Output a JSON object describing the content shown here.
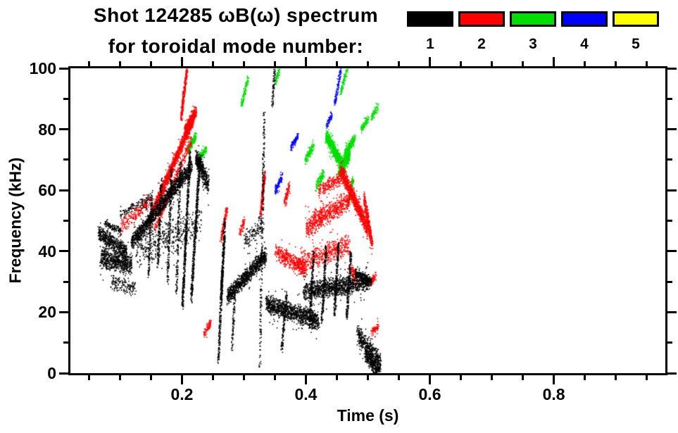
{
  "chart_data": {
    "type": "scatter",
    "title": "Shot 124285 ωB(ω) spectrum",
    "subtitle": "for toroidal mode number:",
    "xlabel": "Time (s)",
    "ylabel": "Frequency (kHz)",
    "xlim": [
      0.02,
      0.98
    ],
    "ylim": [
      0,
      100
    ],
    "xtick_values": [
      0.2,
      0.4,
      0.6,
      0.8
    ],
    "xtick_labels": [
      "0.2",
      "0.4",
      "0.6",
      "0.8"
    ],
    "x_minor_step": 0.05,
    "ytick_values": [
      0,
      20,
      40,
      60,
      80,
      100
    ],
    "ytick_labels": [
      "0",
      "20",
      "40",
      "60",
      "80",
      "100"
    ],
    "y_minor_step": 10,
    "grid": false,
    "seed": 1234,
    "point_size": 1.6,
    "legend": {
      "position": "top-right",
      "entries": [
        {
          "label": "1",
          "color": "#000000"
        },
        {
          "label": "2",
          "color": "#ff0000"
        },
        {
          "label": "3",
          "color": "#00dd00"
        },
        {
          "label": "4",
          "color": "#0000ff"
        },
        {
          "label": "5",
          "color": "#ffff00"
        }
      ]
    },
    "series_note": "segments format: [t_start, t_end, f_start_kHz, f_end_kHz, f_spread_kHz, n_points]",
    "series": [
      {
        "name": "1",
        "color": "#000000",
        "segments": [
          [
            0.065,
            0.11,
            46,
            40,
            3,
            500
          ],
          [
            0.068,
            0.118,
            38,
            36,
            4,
            650
          ],
          [
            0.075,
            0.1,
            49,
            47,
            1.5,
            120
          ],
          [
            0.085,
            0.125,
            30,
            28,
            3,
            140
          ],
          [
            0.1,
            0.148,
            52,
            58,
            2,
            120
          ],
          [
            0.118,
            0.215,
            43,
            68,
            3,
            1400
          ],
          [
            0.125,
            0.23,
            40,
            50,
            7,
            450
          ],
          [
            0.145,
            0.151,
            32,
            60,
            1,
            160
          ],
          [
            0.16,
            0.166,
            35,
            64,
            1,
            160
          ],
          [
            0.176,
            0.182,
            30,
            67,
            1,
            190
          ],
          [
            0.19,
            0.197,
            26,
            70,
            1,
            200
          ],
          [
            0.2,
            0.212,
            22,
            72,
            1.5,
            520
          ],
          [
            0.214,
            0.228,
            24,
            71,
            2,
            480
          ],
          [
            0.222,
            0.242,
            71,
            62,
            3.5,
            380
          ],
          [
            0.258,
            0.268,
            4,
            50,
            1.5,
            300
          ],
          [
            0.262,
            0.268,
            24,
            46,
            2,
            200
          ],
          [
            0.272,
            0.335,
            25,
            39,
            3,
            950
          ],
          [
            0.28,
            0.285,
            8,
            28,
            1,
            90
          ],
          [
            0.3,
            0.33,
            43,
            49,
            4,
            130
          ],
          [
            0.325,
            0.332,
            2,
            86,
            1.2,
            240
          ],
          [
            0.335,
            0.42,
            23,
            17,
            3.5,
            1100
          ],
          [
            0.345,
            0.349,
            88,
            100,
            0.8,
            70
          ],
          [
            0.36,
            0.368,
            8,
            26,
            1,
            120
          ],
          [
            0.395,
            0.5,
            27,
            30,
            3.5,
            1100
          ],
          [
            0.405,
            0.412,
            15,
            40,
            1,
            190
          ],
          [
            0.425,
            0.432,
            17,
            42,
            1,
            200
          ],
          [
            0.445,
            0.452,
            19,
            43,
            1,
            210
          ],
          [
            0.465,
            0.472,
            18,
            40,
            1,
            190
          ],
          [
            0.478,
            0.505,
            33,
            30,
            2,
            230
          ],
          [
            0.482,
            0.52,
            13,
            3,
            4,
            430
          ],
          [
            0.495,
            0.518,
            6,
            1,
            3,
            330
          ]
        ]
      },
      {
        "name": "2",
        "color": "#ff0000",
        "segments": [
          [
            0.1,
            0.15,
            48,
            57,
            2.5,
            200
          ],
          [
            0.15,
            0.218,
            52,
            84,
            2.5,
            1500
          ],
          [
            0.155,
            0.215,
            47,
            77,
            2,
            320
          ],
          [
            0.198,
            0.207,
            84,
            100,
            1.5,
            280
          ],
          [
            0.204,
            0.222,
            80,
            86,
            2,
            330
          ],
          [
            0.235,
            0.246,
            13,
            17,
            1.5,
            80
          ],
          [
            0.262,
            0.272,
            44,
            54,
            1.5,
            140
          ],
          [
            0.292,
            0.3,
            46,
            50,
            1.5,
            60
          ],
          [
            0.326,
            0.333,
            52,
            66,
            1.2,
            220
          ],
          [
            0.35,
            0.4,
            40,
            34,
            3,
            420
          ],
          [
            0.365,
            0.372,
            56,
            62,
            2,
            90
          ],
          [
            0.38,
            0.47,
            36,
            42,
            4,
            550
          ],
          [
            0.4,
            0.47,
            48,
            57,
            4,
            700
          ],
          [
            0.42,
            0.46,
            60,
            65,
            2.5,
            240
          ],
          [
            0.455,
            0.5,
            67,
            47,
            3,
            1000
          ],
          [
            0.493,
            0.506,
            58,
            42,
            2.5,
            330
          ],
          [
            0.498,
            0.512,
            29,
            32,
            1.5,
            90
          ],
          [
            0.504,
            0.516,
            13,
            16,
            1.5,
            70
          ],
          [
            0.472,
            0.48,
            35,
            30,
            2,
            80
          ]
        ]
      },
      {
        "name": "3",
        "color": "#00dd00",
        "segments": [
          [
            0.208,
            0.222,
            73,
            78,
            1.5,
            200
          ],
          [
            0.224,
            0.238,
            69,
            74,
            1.5,
            160
          ],
          [
            0.295,
            0.306,
            88,
            97,
            1.5,
            110
          ],
          [
            0.35,
            0.356,
            95,
            100,
            1,
            60
          ],
          [
            0.398,
            0.412,
            70,
            75,
            2,
            120
          ],
          [
            0.415,
            0.428,
            61,
            66,
            2,
            130
          ],
          [
            0.432,
            0.462,
            78,
            67,
            2.5,
            900
          ],
          [
            0.452,
            0.47,
            66,
            72,
            2.5,
            380
          ],
          [
            0.462,
            0.478,
            72,
            77,
            2,
            240
          ],
          [
            0.468,
            0.475,
            56,
            64,
            1.2,
            150
          ],
          [
            0.455,
            0.466,
            92,
            100,
            1.2,
            90
          ],
          [
            0.488,
            0.5,
            80,
            84,
            1.5,
            90
          ],
          [
            0.505,
            0.516,
            84,
            88,
            1.5,
            70
          ]
        ]
      },
      {
        "name": "4",
        "color": "#0000ff",
        "segments": [
          [
            0.208,
            0.217,
            79,
            84,
            1.2,
            110
          ],
          [
            0.35,
            0.361,
            60,
            65,
            1.5,
            110
          ],
          [
            0.375,
            0.386,
            74,
            78,
            1.2,
            100
          ],
          [
            0.432,
            0.441,
            81,
            85,
            1.2,
            60
          ],
          [
            0.445,
            0.456,
            88,
            100,
            1.2,
            100
          ]
        ]
      },
      {
        "name": "5",
        "color": "#ffff00",
        "segments": []
      }
    ]
  }
}
